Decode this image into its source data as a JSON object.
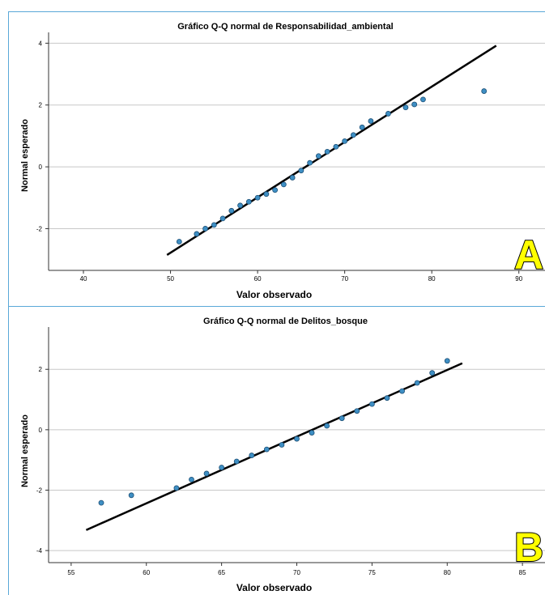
{
  "chart_data": [
    {
      "type": "scatter",
      "title": "Gráfico Q-Q normal de Responsabilidad_ambiental",
      "xlabel": "Valor observado",
      "ylabel": "Normal esperado",
      "xlim": [
        36,
        93
      ],
      "ylim": [
        -3.35,
        4.35
      ],
      "xticks": [
        40,
        50,
        60,
        70,
        80,
        90
      ],
      "yticks": [
        -2,
        0,
        2,
        4
      ],
      "grid": "horizontal",
      "points": [
        [
          51,
          -2.42
        ],
        [
          53,
          -2.17
        ],
        [
          54,
          -2.0
        ],
        [
          55,
          -1.88
        ],
        [
          56,
          -1.67
        ],
        [
          57,
          -1.42
        ],
        [
          58,
          -1.25
        ],
        [
          59,
          -1.13
        ],
        [
          60,
          -1.0
        ],
        [
          61,
          -0.88
        ],
        [
          62,
          -0.75
        ],
        [
          63,
          -0.57
        ],
        [
          64,
          -0.35
        ],
        [
          65,
          -0.12
        ],
        [
          66,
          0.13
        ],
        [
          67,
          0.35
        ],
        [
          68,
          0.49
        ],
        [
          69,
          0.65
        ],
        [
          70,
          0.83
        ],
        [
          71,
          1.03
        ],
        [
          72,
          1.28
        ],
        [
          73,
          1.48
        ],
        [
          75,
          1.72
        ],
        [
          77,
          1.92
        ],
        [
          78,
          2.02
        ],
        [
          79,
          2.18
        ],
        [
          86,
          2.45
        ]
      ],
      "reference_line": [
        [
          49.6,
          -2.85
        ],
        [
          87.4,
          3.92
        ]
      ],
      "annotation": "A",
      "marker_color": "#3e8fc4",
      "line_color": "#000000"
    },
    {
      "type": "scatter",
      "title": "Gráfico Q-Q normal de Delitos_bosque",
      "xlabel": "Valor observado",
      "ylabel": "Normal esperado",
      "xlim": [
        53.5,
        86.5
      ],
      "ylim": [
        -4.4,
        3.4
      ],
      "xticks": [
        55,
        60,
        65,
        70,
        75,
        80,
        85
      ],
      "yticks": [
        -4,
        -2,
        0,
        2
      ],
      "grid": "horizontal",
      "points": [
        [
          57,
          -2.42
        ],
        [
          59,
          -2.17
        ],
        [
          62,
          -1.93
        ],
        [
          63,
          -1.65
        ],
        [
          64,
          -1.45
        ],
        [
          65,
          -1.25
        ],
        [
          66,
          -1.05
        ],
        [
          67,
          -0.85
        ],
        [
          68,
          -0.65
        ],
        [
          69,
          -0.5
        ],
        [
          70,
          -0.3
        ],
        [
          71,
          -0.1
        ],
        [
          72,
          0.13
        ],
        [
          73,
          0.38
        ],
        [
          74,
          0.62
        ],
        [
          75,
          0.85
        ],
        [
          76,
          1.05
        ],
        [
          77,
          1.28
        ],
        [
          78,
          1.55
        ],
        [
          79,
          1.88
        ],
        [
          80,
          2.28
        ]
      ],
      "reference_line": [
        [
          56,
          -3.32
        ],
        [
          81,
          2.2
        ]
      ],
      "annotation": "B",
      "marker_color": "#3e8fc4",
      "line_color": "#000000"
    }
  ]
}
